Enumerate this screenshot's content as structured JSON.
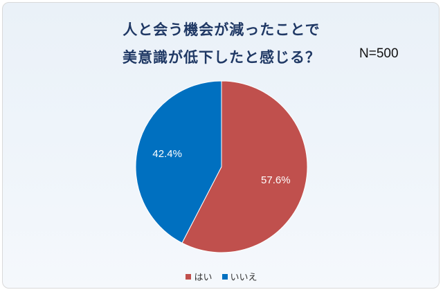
{
  "chart_data": {
    "type": "pie",
    "title_lines": [
      "人と会う機会が減ったことで",
      "美意識が低下したと感じる？"
    ],
    "annotation": "N=500",
    "categories": [
      "はい",
      "いいえ"
    ],
    "values": [
      57.6,
      42.4
    ],
    "labels": [
      "57.6%",
      "42.4%"
    ],
    "colors": [
      "#c0504d",
      "#0070c0"
    ],
    "legend_position": "bottom"
  }
}
